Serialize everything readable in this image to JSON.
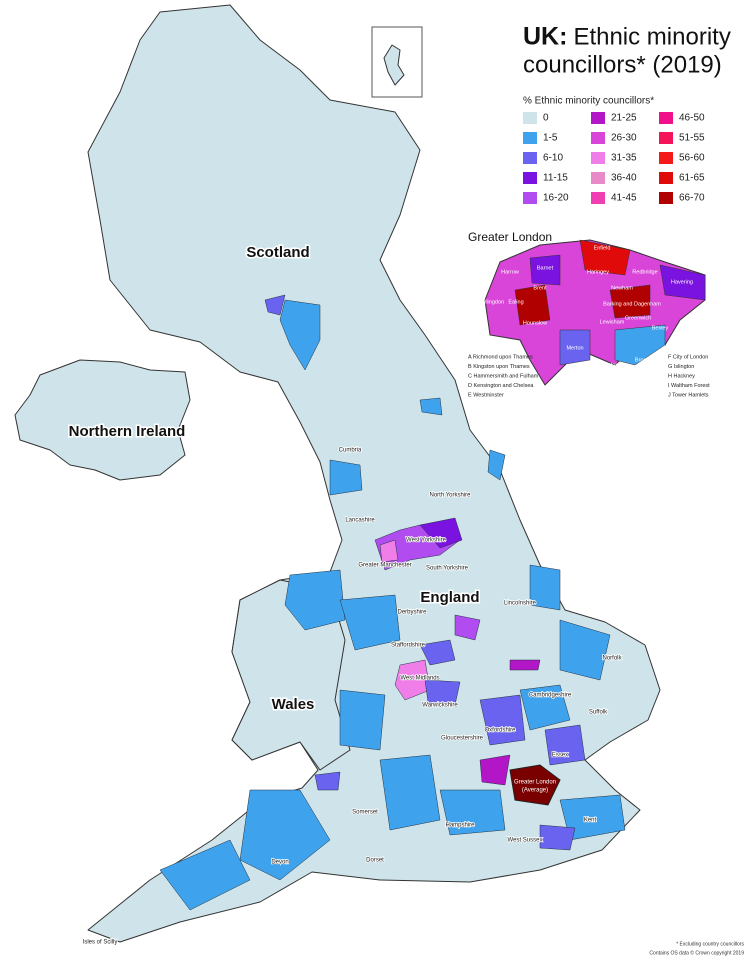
{
  "header": {
    "title_bold": "UK:",
    "title_lines": [
      "Ethnic minority",
      "councillors* (2019)"
    ]
  },
  "legend": {
    "title": "% Ethnic minority councillors*",
    "items": [
      {
        "label": "0",
        "color": "#cfe4ea"
      },
      {
        "label": "1-5",
        "color": "#3fa2ec"
      },
      {
        "label": "6-10",
        "color": "#6a63ef"
      },
      {
        "label": "11-15",
        "color": "#7a12e0"
      },
      {
        "label": "16-20",
        "color": "#b04cf0"
      },
      {
        "label": "21-25",
        "color": "#b216c6"
      },
      {
        "label": "26-30",
        "color": "#d845d8"
      },
      {
        "label": "31-35",
        "color": "#ef7ee8"
      },
      {
        "label": "36-40",
        "color": "#e889c8"
      },
      {
        "label": "41-45",
        "color": "#ef3fb0"
      },
      {
        "label": "46-50",
        "color": "#f0108a"
      },
      {
        "label": "51-55",
        "color": "#f5135a"
      },
      {
        "label": "56-60",
        "color": "#f51a1a"
      },
      {
        "label": "61-65",
        "color": "#e00a0a"
      },
      {
        "label": "66-70",
        "color": "#b00000"
      }
    ]
  },
  "regions": [
    "Scotland",
    "Northern Ireland",
    "Wales",
    "England"
  ],
  "counties": [
    "Cumbria",
    "North Yorkshire",
    "Lancashire",
    "West Yorkshire",
    "Greater Manchester",
    "South Yorkshire",
    "Derbyshire",
    "Lincolnshire",
    "Staffordshire",
    "West Midlands",
    "Warwickshire",
    "Norfolk",
    "Cambridgeshire",
    "Suffolk",
    "Gloucestershire",
    "Oxfordshire",
    "Essex",
    "Somerset",
    "Hampshire",
    "West Sussex",
    "Kent",
    "Dorset",
    "Devon",
    "Isles of Scilly"
  ],
  "london_label": [
    "Greater London",
    "(Average)"
  ],
  "inset": {
    "title": "Greater London",
    "boroughs": [
      "Enfield",
      "Barnet",
      "Harrow",
      "Haringey",
      "Redbridge",
      "Havering",
      "Hillingdon",
      "Ealing",
      "Brent",
      "Newham",
      "Barking and Dagenham",
      "Hounslow",
      "Greenwich",
      "Bexley",
      "Merton",
      "Lewisham",
      "Sutton",
      "Croydon",
      "Bromley"
    ],
    "key": [
      "A  Richmond upon Thames",
      "B  Kingston upon Thames",
      "C  Hammersmith and Fulham",
      "D  Kensington and Chelsea",
      "E  Westminster",
      "F  City of London",
      "G  Islington",
      "H  Hackney",
      "I  Waltham Forest",
      "J  Tower Hamlets"
    ]
  },
  "footnotes": [
    "* Excluding country councillors",
    "Contains OS data © Crown copyright 2019"
  ]
}
